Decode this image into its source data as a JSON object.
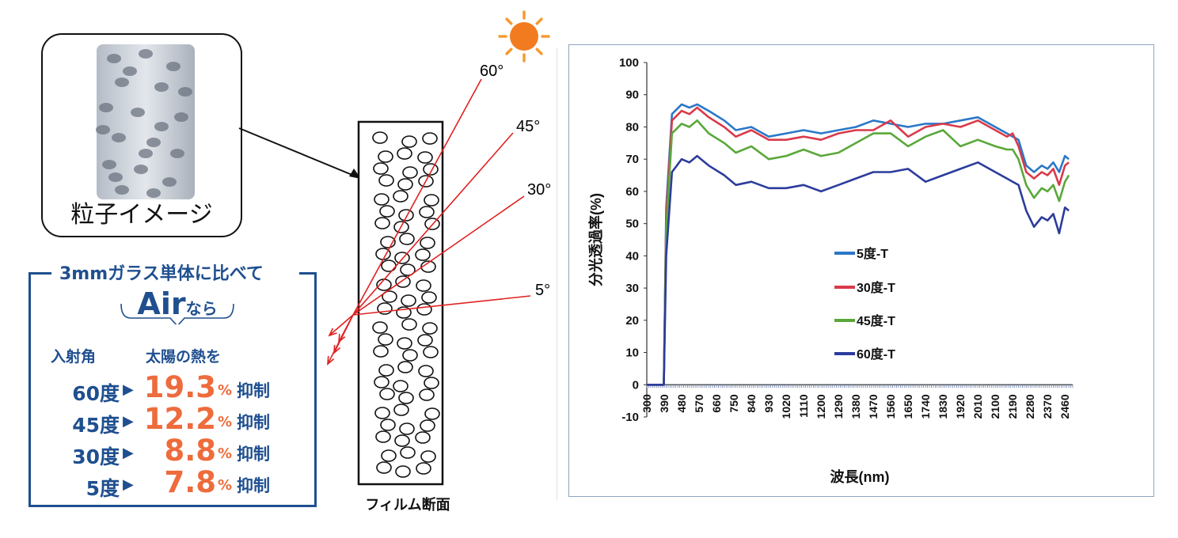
{
  "particle_panel": {
    "label": "粒子イメージ"
  },
  "promo": {
    "heading": "3mmガラス単体に比べて",
    "air_main": "Air",
    "air_suffix": "なら",
    "col_angle": "入射角",
    "col_effect": "太陽の熱を",
    "pct_sign": "%",
    "suffix": "抑制",
    "rows": [
      {
        "angle": "60度",
        "value": "19.3"
      },
      {
        "angle": "45度",
        "value": "12.2"
      },
      {
        "angle": "30度",
        "value": "8.8"
      },
      {
        "angle": "5度",
        "value": "7.8"
      }
    ]
  },
  "film": {
    "caption": "フィルム断面",
    "angles": [
      "60°",
      "45°",
      "30°",
      "5°"
    ]
  },
  "colors": {
    "accent_blue": "#1f4f8f",
    "accent_orange": "#ee6b3c",
    "sun": "#f59a33",
    "ray": "#e02020"
  },
  "chart_data": {
    "type": "line",
    "xlabel": "波長(nm)",
    "ylabel": "分光透過率(%)",
    "ylim": [
      -10,
      100
    ],
    "yticks": [
      -10,
      0,
      10,
      20,
      30,
      40,
      50,
      60,
      70,
      80,
      90,
      100
    ],
    "xlim": [
      300,
      2500
    ],
    "xticks": [
      300,
      390,
      480,
      570,
      660,
      750,
      840,
      930,
      1020,
      1110,
      1200,
      1290,
      1380,
      1470,
      1560,
      1650,
      1740,
      1830,
      1920,
      2010,
      2100,
      2190,
      2280,
      2370,
      2460
    ],
    "legend_position": "center",
    "series": [
      {
        "name": "5度-T",
        "color": "#2a78c8",
        "x": [
          300,
          370,
          388,
          400,
          430,
          480,
          520,
          560,
          620,
          700,
          760,
          840,
          930,
          1020,
          1110,
          1200,
          1290,
          1380,
          1470,
          1560,
          1650,
          1740,
          1830,
          1920,
          2010,
          2100,
          2160,
          2190,
          2220,
          2260,
          2300,
          2340,
          2370,
          2400,
          2430,
          2460,
          2480
        ],
        "y": [
          0,
          0,
          0,
          55,
          84,
          87,
          86,
          87,
          85,
          82,
          79,
          80,
          77,
          78,
          79,
          78,
          79,
          80,
          82,
          81,
          80,
          81,
          81,
          82,
          83,
          80,
          78,
          77,
          76,
          68,
          66,
          68,
          67,
          69,
          66,
          71,
          70
        ]
      },
      {
        "name": "30度-T",
        "color": "#d93a4a",
        "x": [
          300,
          370,
          388,
          400,
          430,
          480,
          520,
          560,
          620,
          700,
          760,
          840,
          930,
          1020,
          1110,
          1200,
          1290,
          1380,
          1470,
          1560,
          1650,
          1740,
          1830,
          1920,
          2010,
          2100,
          2160,
          2190,
          2220,
          2260,
          2300,
          2340,
          2370,
          2400,
          2430,
          2460,
          2480
        ],
        "y": [
          0,
          0,
          0,
          52,
          82,
          85,
          84,
          86,
          83,
          80,
          77,
          79,
          76,
          76,
          77,
          76,
          78,
          79,
          79,
          82,
          77,
          80,
          81,
          80,
          82,
          79,
          77,
          78,
          74,
          66,
          64,
          66,
          65,
          67,
          62,
          68,
          69
        ]
      },
      {
        "name": "45度-T",
        "color": "#5aa83a",
        "x": [
          300,
          370,
          388,
          400,
          430,
          480,
          520,
          560,
          620,
          700,
          760,
          840,
          930,
          1020,
          1110,
          1200,
          1290,
          1380,
          1470,
          1560,
          1650,
          1740,
          1830,
          1920,
          2010,
          2100,
          2160,
          2190,
          2220,
          2260,
          2300,
          2340,
          2370,
          2400,
          2430,
          2460,
          2480
        ],
        "y": [
          0,
          0,
          0,
          48,
          78,
          81,
          80,
          82,
          78,
          75,
          72,
          74,
          70,
          71,
          73,
          71,
          72,
          75,
          78,
          78,
          74,
          77,
          79,
          74,
          76,
          74,
          73,
          73,
          70,
          62,
          58,
          61,
          60,
          62,
          57,
          63,
          65
        ]
      },
      {
        "name": "60度-T",
        "color": "#2c3c9c",
        "x": [
          300,
          370,
          388,
          400,
          430,
          480,
          520,
          560,
          620,
          700,
          760,
          840,
          930,
          1020,
          1110,
          1200,
          1290,
          1380,
          1470,
          1560,
          1650,
          1740,
          1830,
          1920,
          2010,
          2100,
          2160,
          2190,
          2220,
          2260,
          2300,
          2340,
          2370,
          2400,
          2430,
          2460,
          2480
        ],
        "y": [
          0,
          0,
          0,
          40,
          66,
          70,
          69,
          71,
          68,
          65,
          62,
          63,
          61,
          61,
          62,
          60,
          62,
          64,
          66,
          66,
          67,
          63,
          65,
          67,
          69,
          66,
          64,
          63,
          62,
          54,
          49,
          52,
          51,
          53,
          47,
          55,
          54
        ]
      }
    ]
  }
}
